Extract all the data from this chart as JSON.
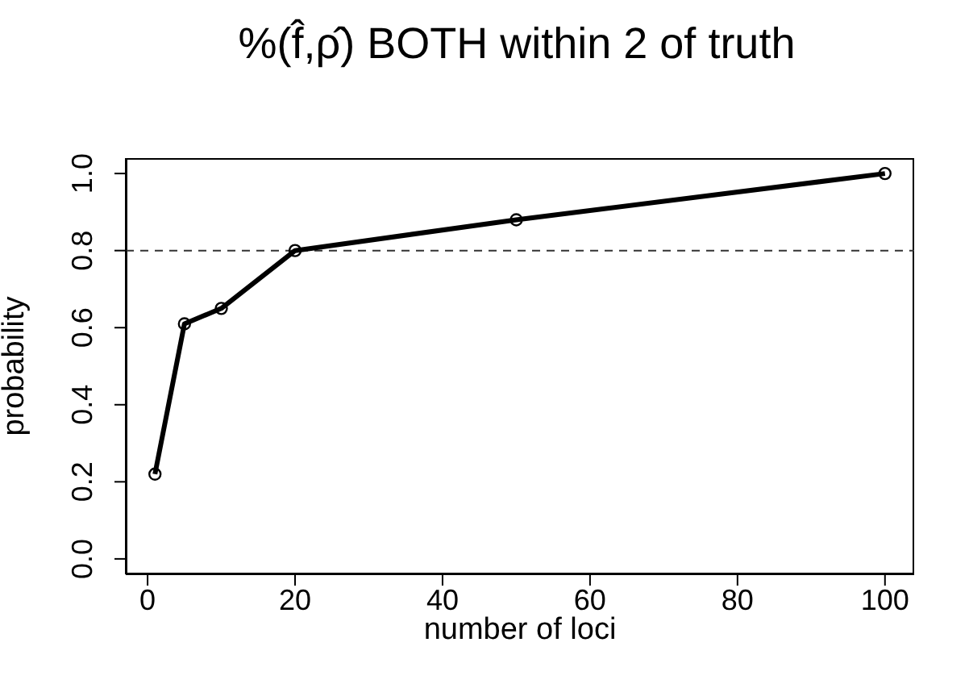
{
  "chart_data": {
    "type": "line",
    "title": "%(f̂,ρ̂) BOTH within 2 of truth",
    "xlabel": "number of loci",
    "ylabel": "probability",
    "x": [
      1,
      5,
      10,
      20,
      50,
      100
    ],
    "series": [
      {
        "color": "#000000",
        "values": [
          0.22,
          0.61,
          0.65,
          0.8,
          0.88,
          1.0
        ]
      }
    ],
    "xlim": [
      -2.96,
      103.96
    ],
    "xticks": [
      0,
      20,
      40,
      60,
      80,
      100
    ],
    "ylim": [
      -0.04,
      1.04
    ],
    "yticks": [
      {
        "value": 0,
        "label": "0.0"
      },
      {
        "value": 0.2,
        "label": "0.2"
      },
      {
        "value": 0.4,
        "label": "0.4"
      },
      {
        "value": 0.6,
        "label": "0.6"
      },
      {
        "value": 0.8,
        "label": "0.8"
      },
      {
        "value": 1,
        "label": "1.0"
      }
    ],
    "ref_lines": [
      {
        "axis": "y",
        "value": 0.8,
        "label": null,
        "line_style": "dashed",
        "color": "#333333"
      }
    ],
    "marker": "circle",
    "line_style": "solid",
    "grid": false,
    "legend": false
  }
}
